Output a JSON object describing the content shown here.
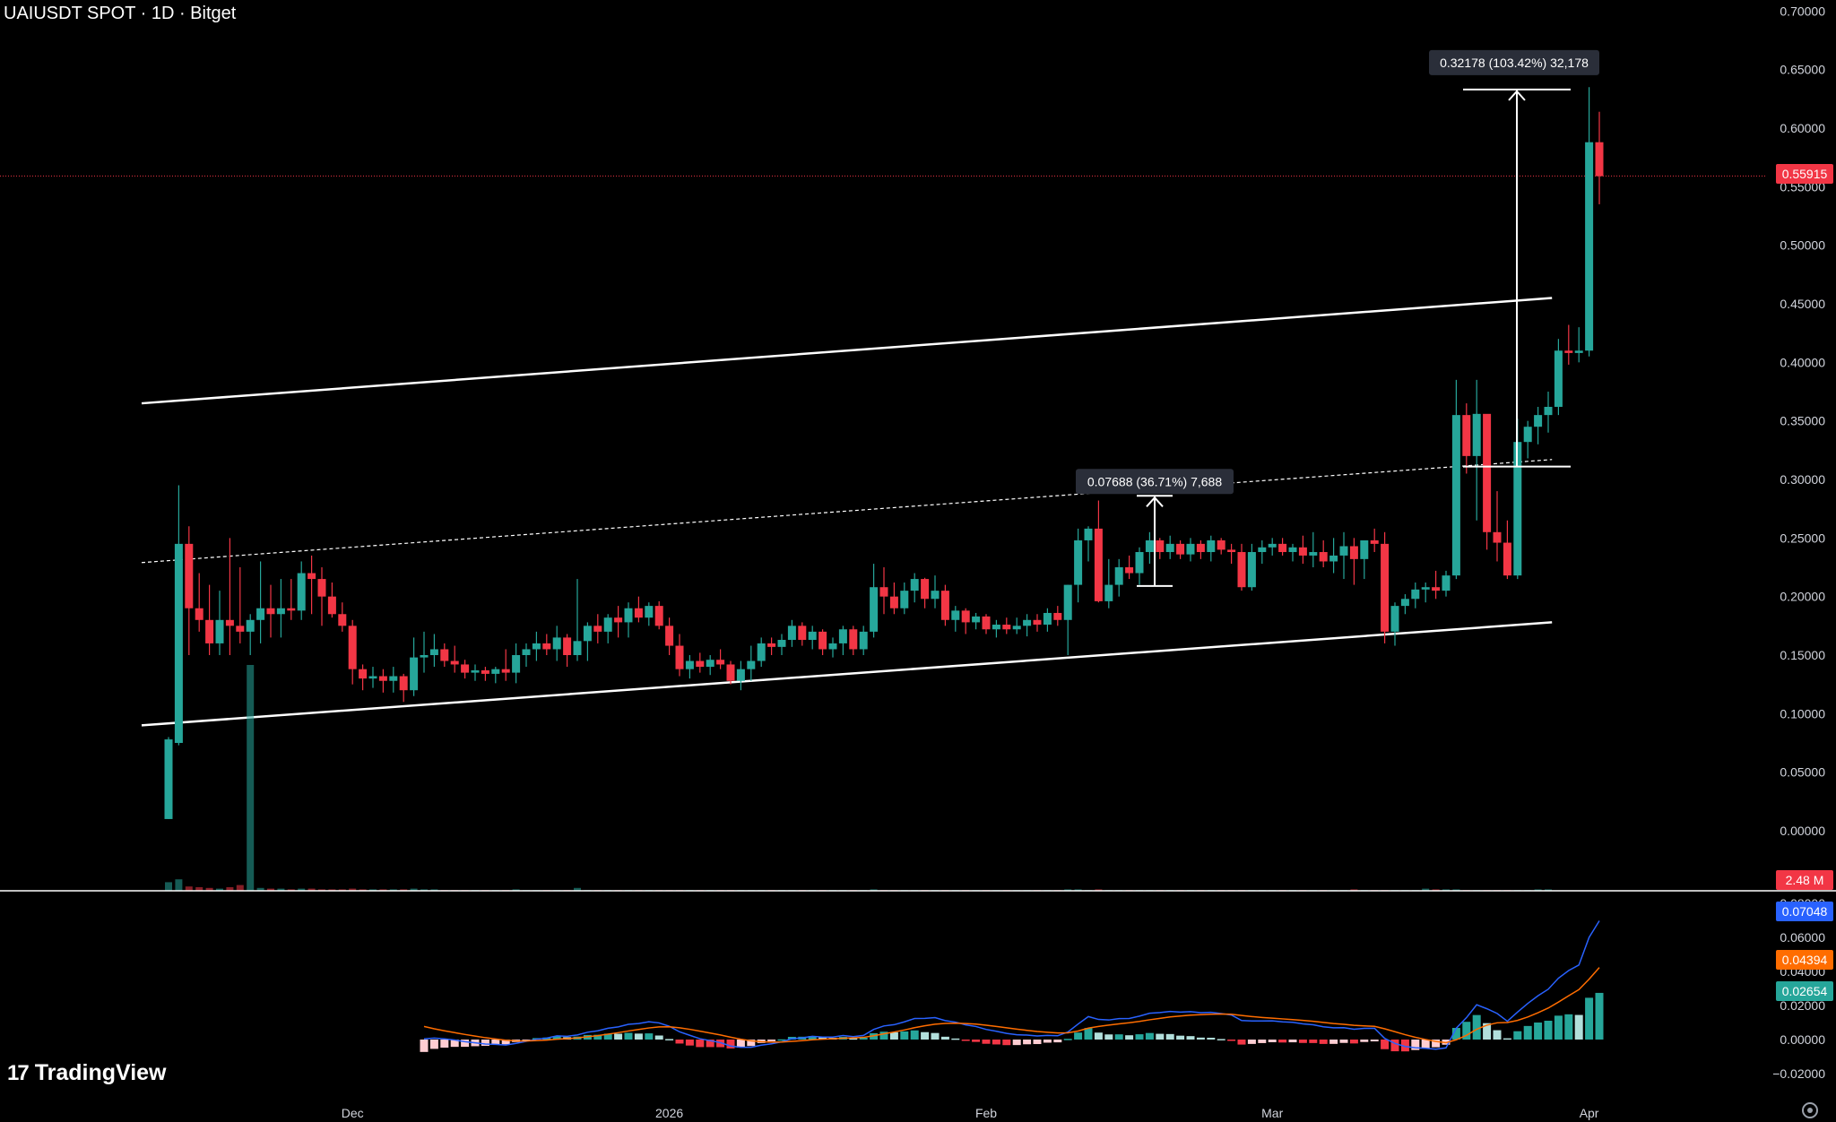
{
  "header": {
    "title": "UAIUSDT SPOT · 1D · Bitget"
  },
  "branding": {
    "logo_mark": "17",
    "logo_text": "TradingView"
  },
  "colors": {
    "up": "#26a69a",
    "down": "#f23645",
    "macd": "#2962ff",
    "signal": "#ff6d00",
    "hist_up": "#26a69a",
    "last_price": "#f23645"
  },
  "chart_data": [
    {
      "type": "candlestick",
      "title": "UAIUSDT SPOT · 1D · Bitget",
      "timeframe": "1D",
      "exchange": "Bitget",
      "x_tick_labels": [
        "Dec",
        "2026",
        "Feb",
        "Mar",
        "Apr"
      ],
      "y_tick_labels": [
        "0.70000",
        "0.65000",
        "0.60000",
        "0.55000",
        "0.50000",
        "0.45000",
        "0.40000",
        "0.35000",
        "0.30000",
        "0.25000",
        "0.20000",
        "0.15000",
        "0.10000",
        "0.05000",
        "0.00000"
      ],
      "ylim": [
        -0.05,
        0.7
      ],
      "x": [
        "2025-11-13",
        "2025-11-14",
        "2025-11-15",
        "2025-11-16",
        "2025-11-17",
        "2025-11-18",
        "2025-11-19",
        "2025-11-20",
        "2025-11-21",
        "2025-11-22",
        "2025-11-23",
        "2025-11-24",
        "2025-11-25",
        "2025-11-26",
        "2025-11-27",
        "2025-11-28",
        "2025-11-29",
        "2025-11-30",
        "2025-12-01",
        "2025-12-02",
        "2025-12-03",
        "2025-12-04",
        "2025-12-05",
        "2025-12-06",
        "2025-12-07",
        "2025-12-08",
        "2025-12-09",
        "2025-12-10",
        "2025-12-11",
        "2025-12-12",
        "2025-12-13",
        "2025-12-14",
        "2025-12-15",
        "2025-12-16",
        "2025-12-17",
        "2025-12-18",
        "2025-12-19",
        "2025-12-20",
        "2025-12-21",
        "2025-12-22",
        "2025-12-23",
        "2025-12-24",
        "2025-12-25",
        "2025-12-26",
        "2025-12-27",
        "2025-12-28",
        "2025-12-29",
        "2025-12-30",
        "2025-12-31",
        "2026-01-01",
        "2026-01-02",
        "2026-01-03",
        "2026-01-04",
        "2026-01-05",
        "2026-01-06",
        "2026-01-07",
        "2026-01-08",
        "2026-01-09",
        "2026-01-10",
        "2026-01-11",
        "2026-01-12",
        "2026-01-13",
        "2026-01-14",
        "2026-01-15",
        "2026-01-16",
        "2026-01-17",
        "2026-01-18",
        "2026-01-19",
        "2026-01-20",
        "2026-01-21",
        "2026-01-22",
        "2026-01-23",
        "2026-01-24",
        "2026-01-25",
        "2026-01-26",
        "2026-01-27",
        "2026-01-28",
        "2026-01-29",
        "2026-01-30",
        "2026-01-31",
        "2026-02-01",
        "2026-02-02",
        "2026-02-03",
        "2026-02-04",
        "2026-02-05",
        "2026-02-06",
        "2026-02-07",
        "2026-02-08",
        "2026-02-09",
        "2026-02-10",
        "2026-02-11",
        "2026-02-12",
        "2026-02-13",
        "2026-02-14",
        "2026-02-15",
        "2026-02-16",
        "2026-02-17",
        "2026-02-18",
        "2026-02-19",
        "2026-02-20",
        "2026-02-21",
        "2026-02-22",
        "2026-02-23",
        "2026-02-24",
        "2026-02-25",
        "2026-02-26",
        "2026-02-27",
        "2026-02-28",
        "2026-03-01",
        "2026-03-02",
        "2026-03-03",
        "2026-03-04",
        "2026-03-05",
        "2026-03-06",
        "2026-03-07",
        "2026-03-08",
        "2026-03-09",
        "2026-03-10",
        "2026-03-11",
        "2026-03-12",
        "2026-03-13",
        "2026-03-14",
        "2026-03-15",
        "2026-03-16",
        "2026-03-17",
        "2026-03-18",
        "2026-03-19",
        "2026-03-20",
        "2026-03-21",
        "2026-03-22",
        "2026-03-23",
        "2026-03-24"
      ],
      "ohlc": [
        [
          0.01,
          0.08,
          0.01,
          0.078
        ],
        [
          0.075,
          0.295,
          0.073,
          0.245
        ],
        [
          0.245,
          0.26,
          0.15,
          0.19
        ],
        [
          0.19,
          0.22,
          0.17,
          0.18
        ],
        [
          0.18,
          0.21,
          0.15,
          0.16
        ],
        [
          0.16,
          0.205,
          0.15,
          0.18
        ],
        [
          0.18,
          0.25,
          0.15,
          0.175
        ],
        [
          0.175,
          0.225,
          0.16,
          0.17
        ],
        [
          0.17,
          0.185,
          0.15,
          0.18
        ],
        [
          0.18,
          0.23,
          0.16,
          0.19
        ],
        [
          0.19,
          0.21,
          0.165,
          0.185
        ],
        [
          0.185,
          0.215,
          0.165,
          0.19
        ],
        [
          0.19,
          0.215,
          0.18,
          0.188
        ],
        [
          0.188,
          0.23,
          0.18,
          0.22
        ],
        [
          0.22,
          0.235,
          0.185,
          0.215
        ],
        [
          0.215,
          0.225,
          0.175,
          0.2
        ],
        [
          0.2,
          0.212,
          0.182,
          0.185
        ],
        [
          0.185,
          0.195,
          0.17,
          0.175
        ],
        [
          0.175,
          0.18,
          0.125,
          0.138
        ],
        [
          0.138,
          0.142,
          0.12,
          0.13
        ],
        [
          0.13,
          0.14,
          0.122,
          0.132
        ],
        [
          0.132,
          0.138,
          0.118,
          0.128
        ],
        [
          0.128,
          0.14,
          0.118,
          0.132
        ],
        [
          0.132,
          0.134,
          0.11,
          0.12
        ],
        [
          0.12,
          0.165,
          0.115,
          0.148
        ],
        [
          0.148,
          0.17,
          0.135,
          0.15
        ],
        [
          0.15,
          0.168,
          0.14,
          0.155
        ],
        [
          0.155,
          0.16,
          0.14,
          0.145
        ],
        [
          0.145,
          0.158,
          0.135,
          0.142
        ],
        [
          0.142,
          0.146,
          0.13,
          0.135
        ],
        [
          0.135,
          0.142,
          0.128,
          0.137
        ],
        [
          0.137,
          0.14,
          0.128,
          0.134
        ],
        [
          0.134,
          0.14,
          0.126,
          0.138
        ],
        [
          0.138,
          0.155,
          0.128,
          0.135
        ],
        [
          0.135,
          0.16,
          0.126,
          0.15
        ],
        [
          0.15,
          0.16,
          0.14,
          0.155
        ],
        [
          0.155,
          0.17,
          0.145,
          0.16
        ],
        [
          0.16,
          0.168,
          0.15,
          0.155
        ],
        [
          0.155,
          0.175,
          0.145,
          0.165
        ],
        [
          0.165,
          0.168,
          0.14,
          0.15
        ],
        [
          0.15,
          0.215,
          0.145,
          0.162
        ],
        [
          0.162,
          0.178,
          0.145,
          0.175
        ],
        [
          0.175,
          0.185,
          0.16,
          0.17
        ],
        [
          0.17,
          0.185,
          0.16,
          0.182
        ],
        [
          0.182,
          0.192,
          0.165,
          0.178
        ],
        [
          0.178,
          0.195,
          0.165,
          0.19
        ],
        [
          0.19,
          0.2,
          0.178,
          0.182
        ],
        [
          0.182,
          0.195,
          0.175,
          0.192
        ],
        [
          0.192,
          0.196,
          0.172,
          0.175
        ],
        [
          0.175,
          0.182,
          0.15,
          0.158
        ],
        [
          0.158,
          0.168,
          0.132,
          0.138
        ],
        [
          0.138,
          0.15,
          0.13,
          0.145
        ],
        [
          0.145,
          0.152,
          0.135,
          0.14
        ],
        [
          0.14,
          0.15,
          0.133,
          0.146
        ],
        [
          0.146,
          0.155,
          0.138,
          0.142
        ],
        [
          0.142,
          0.145,
          0.125,
          0.128
        ],
        [
          0.128,
          0.145,
          0.12,
          0.138
        ],
        [
          0.138,
          0.158,
          0.128,
          0.145
        ],
        [
          0.145,
          0.165,
          0.14,
          0.16
        ],
        [
          0.16,
          0.165,
          0.15,
          0.157
        ],
        [
          0.157,
          0.168,
          0.15,
          0.163
        ],
        [
          0.163,
          0.18,
          0.157,
          0.175
        ],
        [
          0.175,
          0.178,
          0.158,
          0.163
        ],
        [
          0.163,
          0.175,
          0.155,
          0.17
        ],
        [
          0.17,
          0.172,
          0.15,
          0.155
        ],
        [
          0.155,
          0.165,
          0.148,
          0.16
        ],
        [
          0.16,
          0.175,
          0.15,
          0.172
        ],
        [
          0.172,
          0.175,
          0.15,
          0.155
        ],
        [
          0.155,
          0.175,
          0.15,
          0.17
        ],
        [
          0.17,
          0.228,
          0.165,
          0.208
        ],
        [
          0.208,
          0.225,
          0.185,
          0.2
        ],
        [
          0.2,
          0.212,
          0.185,
          0.19
        ],
        [
          0.19,
          0.212,
          0.185,
          0.205
        ],
        [
          0.205,
          0.22,
          0.195,
          0.215
        ],
        [
          0.215,
          0.216,
          0.19,
          0.198
        ],
        [
          0.198,
          0.218,
          0.19,
          0.205
        ],
        [
          0.205,
          0.21,
          0.175,
          0.18
        ],
        [
          0.18,
          0.192,
          0.17,
          0.188
        ],
        [
          0.188,
          0.19,
          0.168,
          0.178
        ],
        [
          0.178,
          0.186,
          0.172,
          0.183
        ],
        [
          0.183,
          0.185,
          0.168,
          0.172
        ],
        [
          0.172,
          0.18,
          0.165,
          0.176
        ],
        [
          0.176,
          0.182,
          0.168,
          0.172
        ],
        [
          0.172,
          0.182,
          0.168,
          0.175
        ],
        [
          0.175,
          0.185,
          0.166,
          0.18
        ],
        [
          0.18,
          0.185,
          0.17,
          0.176
        ],
        [
          0.176,
          0.19,
          0.17,
          0.186
        ],
        [
          0.186,
          0.192,
          0.175,
          0.18
        ],
        [
          0.18,
          0.21,
          0.15,
          0.21
        ],
        [
          0.21,
          0.258,
          0.195,
          0.248
        ],
        [
          0.248,
          0.26,
          0.23,
          0.258
        ],
        [
          0.258,
          0.282,
          0.195,
          0.196
        ],
        [
          0.196,
          0.232,
          0.19,
          0.21
        ],
        [
          0.21,
          0.232,
          0.2,
          0.225
        ],
        [
          0.225,
          0.235,
          0.215,
          0.22
        ],
        [
          0.22,
          0.242,
          0.21,
          0.238
        ],
        [
          0.238,
          0.255,
          0.228,
          0.248
        ],
        [
          0.248,
          0.25,
          0.232,
          0.238
        ],
        [
          0.238,
          0.252,
          0.232,
          0.245
        ],
        [
          0.245,
          0.248,
          0.232,
          0.236
        ],
        [
          0.236,
          0.25,
          0.23,
          0.245
        ],
        [
          0.245,
          0.248,
          0.232,
          0.238
        ],
        [
          0.238,
          0.252,
          0.23,
          0.248
        ],
        [
          0.248,
          0.25,
          0.236,
          0.24
        ],
        [
          0.24,
          0.245,
          0.228,
          0.238
        ],
        [
          0.238,
          0.245,
          0.205,
          0.208
        ],
        [
          0.208,
          0.245,
          0.205,
          0.238
        ],
        [
          0.238,
          0.248,
          0.228,
          0.242
        ],
        [
          0.242,
          0.25,
          0.235,
          0.245
        ],
        [
          0.245,
          0.25,
          0.235,
          0.238
        ],
        [
          0.238,
          0.245,
          0.23,
          0.242
        ],
        [
          0.242,
          0.252,
          0.228,
          0.235
        ],
        [
          0.235,
          0.255,
          0.225,
          0.238
        ],
        [
          0.238,
          0.248,
          0.225,
          0.23
        ],
        [
          0.23,
          0.25,
          0.22,
          0.235
        ],
        [
          0.235,
          0.255,
          0.215,
          0.243
        ],
        [
          0.243,
          0.25,
          0.21,
          0.232
        ],
        [
          0.232,
          0.245,
          0.215,
          0.248
        ],
        [
          0.248,
          0.258,
          0.238,
          0.245
        ],
        [
          0.245,
          0.255,
          0.16,
          0.17
        ],
        [
          0.17,
          0.195,
          0.158,
          0.192
        ],
        [
          0.192,
          0.202,
          0.185,
          0.198
        ],
        [
          0.198,
          0.212,
          0.19,
          0.206
        ],
        [
          0.206,
          0.212,
          0.195,
          0.208
        ],
        [
          0.208,
          0.222,
          0.198,
          0.205
        ],
        [
          0.205,
          0.222,
          0.2,
          0.218
        ],
        [
          0.218,
          0.385,
          0.215,
          0.355
        ],
        [
          0.355,
          0.365,
          0.305,
          0.32
        ],
        [
          0.32,
          0.385,
          0.265,
          0.356
        ],
        [
          0.356,
          0.35,
          0.24,
          0.255
        ],
        [
          0.255,
          0.29,
          0.23,
          0.246
        ],
        [
          0.246,
          0.265,
          0.215,
          0.218
        ],
        [
          0.218,
          0.352,
          0.215,
          0.332
        ],
        [
          0.332,
          0.35,
          0.318,
          0.345
        ],
        [
          0.345,
          0.362,
          0.33,
          0.355
        ],
        [
          0.355,
          0.375,
          0.34,
          0.362
        ],
        [
          0.362,
          0.42,
          0.355,
          0.41
        ],
        [
          0.41,
          0.432,
          0.398,
          0.408
        ],
        [
          0.408,
          0.43,
          0.4,
          0.41
        ],
        [
          0.41,
          0.635,
          0.405,
          0.588
        ],
        [
          0.588,
          0.614,
          0.535,
          0.559
        ]
      ],
      "last_price": "0.55915",
      "annotations": [
        {
          "text": "0.07688 (36.71%) 7,688",
          "from": 0.209,
          "to": 0.286
        },
        {
          "text": "0.32178 (103.42%) 32,178",
          "from": 0.311,
          "to": 0.633
        }
      ],
      "trendlines": [
        {
          "style": "solid",
          "from": [
            "2025-11-13",
            0.365
          ],
          "to": [
            "2026-03-31",
            0.455
          ]
        },
        {
          "style": "dotted",
          "from": [
            "2025-11-13",
            0.229
          ],
          "to": [
            "2026-03-31",
            0.317
          ]
        },
        {
          "style": "solid",
          "from": [
            "2025-11-13",
            0.09
          ],
          "to": [
            "2026-03-31",
            0.178
          ]
        }
      ]
    },
    {
      "type": "bar",
      "title": "Volume",
      "last_value": "2.48 M",
      "values": [
        1.2,
        1.6,
        0.6,
        0.5,
        0.4,
        0.3,
        0.5,
        0.8,
        2.4,
        0.4,
        0.3,
        0.3,
        0.2,
        0.3,
        0.3,
        0.2,
        0.2,
        0.2,
        0.3,
        0.2,
        0.2,
        0.2,
        0.2,
        0.2,
        0.3,
        0.2,
        0.2,
        0.1,
        0.1,
        0.1,
        0.1,
        0.1,
        0.1,
        0.1,
        0.2,
        0.1,
        0.1,
        0.1,
        0.1,
        0.1,
        0.4,
        0.1,
        0.1,
        0.1,
        0.1,
        0.1,
        0.1,
        0.1,
        0.1,
        0.1,
        0.1,
        0.1,
        0.1,
        0.1,
        0.1,
        0.1,
        0.1,
        0.1,
        0.1,
        0.1,
        0.1,
        0.1,
        0.1,
        0.1,
        0.1,
        0.1,
        0.1,
        0.1,
        0.1,
        0.2,
        0.1,
        0.1,
        0.1,
        0.1,
        0.1,
        0.1,
        0.1,
        0.1,
        0.1,
        0.1,
        0.1,
        0.1,
        0.1,
        0.1,
        0.1,
        0.1,
        0.1,
        0.1,
        0.2,
        0.2,
        0.1,
        0.2,
        0.1,
        0.1,
        0.1,
        0.1,
        0.1,
        0.1,
        0.1,
        0.1,
        0.1,
        0.1,
        0.1,
        0.1,
        0.1,
        0.1,
        0.1,
        0.1,
        0.1,
        0.1,
        0.1,
        0.1,
        0.1,
        0.1,
        0.1,
        0.1,
        0.2,
        0.1,
        0.1,
        0.1,
        0.1,
        0.1,
        0.1,
        0.3,
        0.2,
        0.2,
        0.2,
        0.1,
        0.1,
        0.1,
        0.1,
        0.1,
        0.1,
        0.1,
        0.2,
        0.2
      ]
    },
    {
      "type": "line",
      "title": "MACD",
      "y_tick_labels": [
        "0.08000",
        "0.06000",
        "0.04000",
        "0.02000",
        "0.00000",
        "−0.02000"
      ],
      "ylim": [
        -0.026,
        0.08
      ],
      "value_labels": {
        "macd": "0.07048",
        "signal": "0.04394",
        "histogram": "0.02654"
      }
    }
  ]
}
